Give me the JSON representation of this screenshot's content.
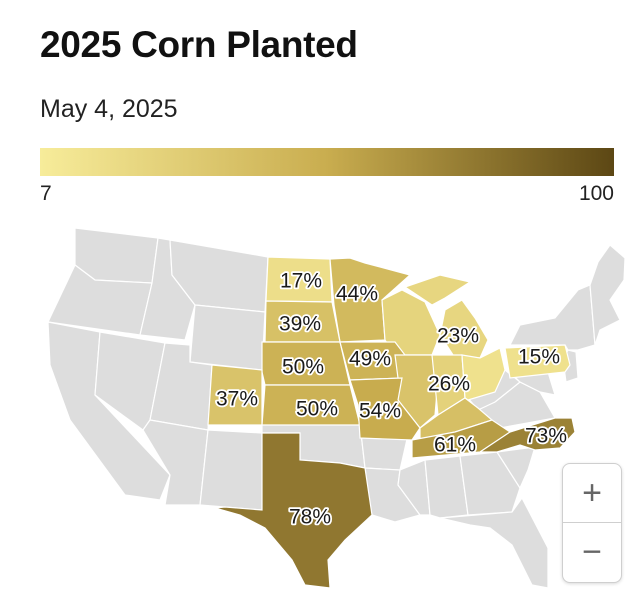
{
  "title": "2025 Corn Planted",
  "subtitle": "May 4, 2025",
  "legend": {
    "min": "7",
    "max": "100",
    "color_low": "#f7ec9a",
    "color_mid": "#c9ad4f",
    "color_high": "#5c4714"
  },
  "map": {
    "background_state_color": "#dddddd",
    "border_color": "#ffffff",
    "states": [
      {
        "state": "North Dakota",
        "value": 17,
        "label": "17%"
      },
      {
        "state": "Minnesota",
        "value": 44,
        "label": "44%"
      },
      {
        "state": "South Dakota",
        "value": 39,
        "label": "39%"
      },
      {
        "state": "Wisconsin",
        "value": 25
      },
      {
        "state": "Michigan",
        "value": 23,
        "label": "23%"
      },
      {
        "state": "Nebraska",
        "value": 50,
        "label": "50%"
      },
      {
        "state": "Iowa",
        "value": 49,
        "label": "49%"
      },
      {
        "state": "Illinois",
        "value": 37
      },
      {
        "state": "Indiana",
        "value": 26,
        "label": "26%"
      },
      {
        "state": "Ohio",
        "value": 15
      },
      {
        "state": "Pennsylvania",
        "value": 15,
        "label": "15%"
      },
      {
        "state": "Colorado",
        "value": 37,
        "label": "37%"
      },
      {
        "state": "Kansas",
        "value": 50,
        "label": "50%"
      },
      {
        "state": "Missouri",
        "value": 54,
        "label": "54%"
      },
      {
        "state": "Kentucky",
        "value": 40
      },
      {
        "state": "Tennessee",
        "value": 61,
        "label": "61%"
      },
      {
        "state": "North Carolina",
        "value": 73,
        "label": "73%"
      },
      {
        "state": "Texas",
        "value": 78,
        "label": "78%"
      }
    ]
  },
  "zoom": {
    "in_label": "+",
    "out_label": "−"
  }
}
